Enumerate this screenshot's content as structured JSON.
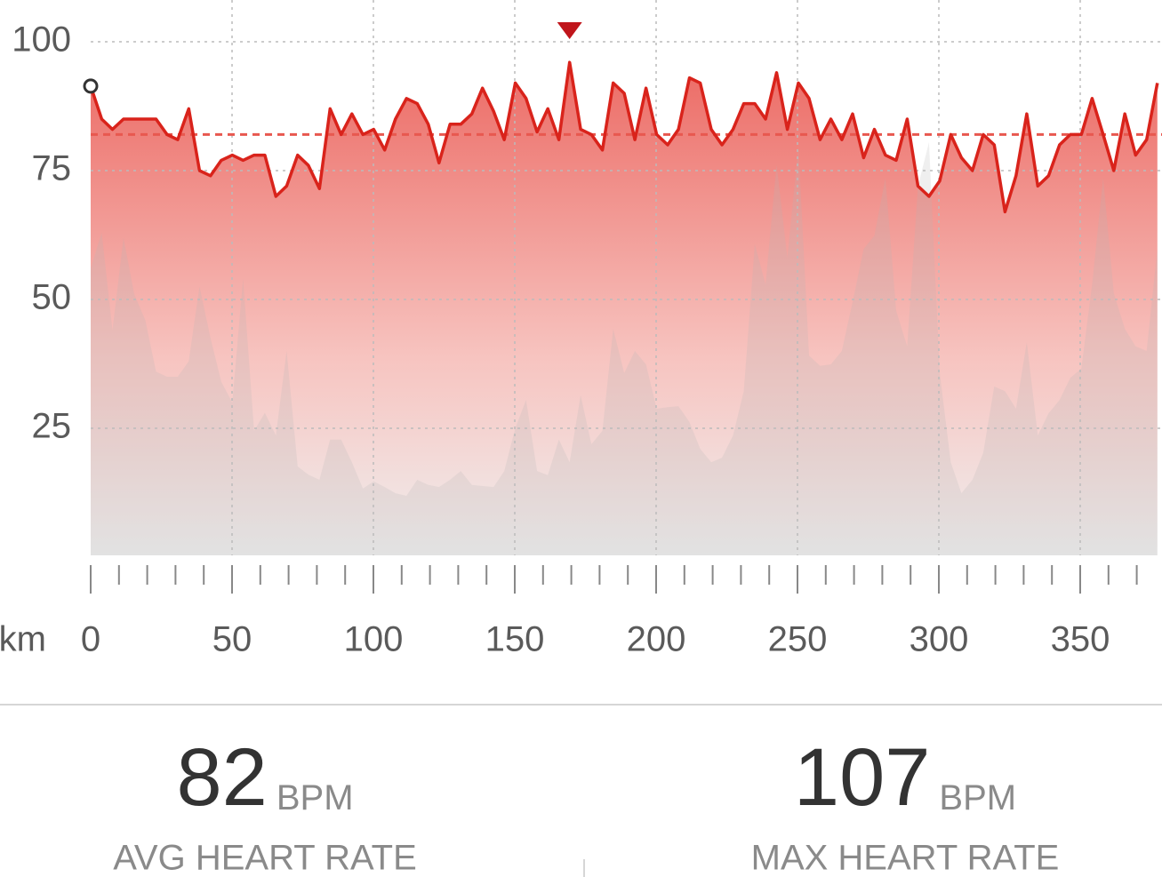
{
  "chart_data": {
    "type": "line",
    "x_unit": "km",
    "xlim": [
      0,
      379
    ],
    "ylim": [
      0,
      100
    ],
    "xticks": [
      0,
      50,
      100,
      150,
      200,
      250,
      300,
      350
    ],
    "xminorticks": [
      10,
      20,
      30,
      40,
      60,
      70,
      80,
      90,
      110,
      120,
      130,
      140,
      160,
      170,
      180,
      190,
      210,
      220,
      230,
      240,
      260,
      270,
      280,
      290,
      310,
      320,
      330,
      340,
      360,
      370
    ],
    "yticks": [
      25,
      50,
      75,
      100
    ],
    "grid": true,
    "x": [
      0,
      3.9,
      7.7,
      11.6,
      15.4,
      19.3,
      23.1,
      27,
      30.8,
      34.7,
      38.5,
      42.4,
      46.2,
      50.1,
      53.9,
      57.8,
      61.6,
      65.5,
      69.3,
      73.2,
      77,
      80.9,
      84.7,
      88.6,
      92.4,
      96.3,
      100.1,
      104,
      107.8,
      111.7,
      115.5,
      119.4,
      123.2,
      127.1,
      130.9,
      134.8,
      138.6,
      142.5,
      146.3,
      150.2,
      154,
      157.9,
      161.7,
      165.6,
      169.4,
      173.3,
      177.1,
      181,
      184.8,
      188.7,
      192.5,
      196.4,
      200.2,
      204.1,
      207.9,
      211.8,
      215.6,
      219.5,
      223.3,
      227.2,
      231,
      234.9,
      238.7,
      242.6,
      246.4,
      250.3,
      254.1,
      258,
      261.8,
      265.7,
      269.5,
      273.4,
      277.2,
      281.1,
      284.9,
      288.8,
      292.6,
      296.5,
      300.3,
      304.2,
      308,
      311.9,
      315.7,
      319.6,
      323.4,
      327.3,
      331.1,
      335,
      338.8,
      342.7,
      346.5,
      350.4,
      354.2,
      358.1,
      361.9,
      365.8,
      369.6,
      373.5,
      377.3
    ],
    "series": [
      {
        "color": "#d9231b",
        "values": [
          91.4,
          85,
          83,
          85,
          85,
          85,
          85,
          82,
          81,
          87,
          75,
          74,
          77,
          78,
          77,
          78,
          78,
          70,
          72,
          78,
          76,
          71.5,
          87,
          82,
          86,
          82,
          83,
          79,
          85,
          89,
          88,
          84,
          76.5,
          84,
          84,
          86,
          91,
          86.5,
          81,
          92,
          89,
          82.5,
          87,
          81,
          96,
          83,
          82,
          79,
          92,
          90,
          81,
          91,
          82,
          80,
          83,
          93,
          92,
          83,
          80,
          83,
          88,
          88,
          85,
          94,
          83,
          92,
          89,
          81,
          85,
          81,
          86,
          77.5,
          83,
          78,
          77,
          85,
          72,
          70,
          73,
          82,
          77.5,
          75,
          82,
          80,
          67,
          74,
          86,
          72,
          74,
          80,
          82,
          82,
          89,
          82,
          75,
          86,
          78,
          81,
          92
        ]
      },
      {
        "color": "#b4b4b4",
        "values": [
          56,
          63,
          44,
          62,
          51,
          46,
          36,
          35,
          35,
          38,
          52.5,
          42.5,
          34,
          30,
          54,
          24.5,
          28,
          23.6,
          40,
          17.6,
          16,
          15,
          22.8,
          22.8,
          18.4,
          13.3,
          14.7,
          13.6,
          12.4,
          11.9,
          15,
          14,
          13.6,
          15,
          16.7,
          14,
          13.8,
          13.6,
          16.7,
          25,
          30.5,
          16.7,
          15.9,
          22.8,
          18.4,
          31.4,
          21.9,
          24.5,
          44.3,
          35.7,
          40,
          37.4,
          28.8,
          29.1,
          29.3,
          26.2,
          21,
          18.4,
          19.3,
          23.6,
          32.2,
          60.7,
          52.9,
          76.2,
          58.1,
          79.7,
          39.1,
          37.1,
          37.4,
          40,
          49.5,
          59.8,
          62.4,
          73.6,
          47.8,
          40.9,
          71.9,
          80.5,
          35.7,
          18.4,
          12.4,
          15,
          20.2,
          33.1,
          32.2,
          28.8,
          41.7,
          23.6,
          27.9,
          30.5,
          34.8,
          36.6,
          52.9,
          73.6,
          51.2,
          44.3,
          40.9,
          40,
          59.8
        ]
      }
    ]
  },
  "stats": [
    {
      "value": 82,
      "unit": "BPM",
      "label": "AVG HEART RATE"
    },
    {
      "value": 107,
      "unit": "BPM",
      "label": "MAX HEART RATE"
    }
  ]
}
